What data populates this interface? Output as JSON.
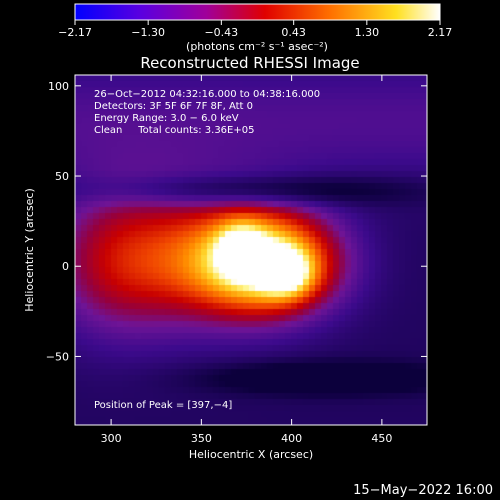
{
  "chart_data": {
    "type": "heatmap",
    "title": "Reconstructed RHESSI Image",
    "xlabel": "Heliocentric X (arcsec)",
    "ylabel": "Heliocentric Y (arcsec)",
    "xlim": [
      280,
      475
    ],
    "ylim": [
      -88,
      106
    ],
    "x_ticks": [
      300,
      350,
      400,
      450
    ],
    "x_tick_labels": [
      "300",
      "350",
      "400",
      "450"
    ],
    "y_ticks": [
      100,
      50,
      0,
      -50
    ],
    "y_tick_labels": [
      "100",
      "50",
      "0",
      "−50"
    ],
    "colorbar": {
      "unit_label": "(photons cm⁻² s⁻¹ asec⁻²)",
      "range": [
        -2.17,
        2.17
      ],
      "tick_labels": [
        "−2.17",
        "−1.30",
        "−0.43",
        "0.43",
        "1.30",
        "2.17"
      ],
      "colors": [
        "#0000ff",
        "#6a00d0",
        "#a8008f",
        "#e00000",
        "#ff8000",
        "#ffff30",
        "#ffffff"
      ]
    },
    "annotations": [
      "26−Oct−2012 04:32:16.000 to 04:38:16.000",
      "Detectors: 3F 5F 6F 7F 8F, Att 0",
      "Energy Range: 3.0 − 6.0 keV",
      "Clean     Total counts: 3.36E+05"
    ],
    "peak_label": "Position of Peak = [397,−4]",
    "peak_position": [
      397,
      -4
    ],
    "sources": [
      {
        "x": 385,
        "y": 2,
        "sx": 28,
        "sy": 20,
        "amp": 1.35
      },
      {
        "x": 397,
        "y": -4,
        "sx": 10,
        "sy": 9,
        "amp": 0.65
      },
      {
        "x": 372,
        "y": 10,
        "sx": 9,
        "sy": 10,
        "amp": 0.5
      },
      {
        "x": 330,
        "y": 5,
        "sx": 38,
        "sy": 28,
        "amp": 0.55
      },
      {
        "x": 300,
        "y": 0,
        "sx": 25,
        "sy": 30,
        "amp": 0.25
      }
    ]
  },
  "footer": {
    "date_stamp": "15−May−2022 16:00"
  }
}
